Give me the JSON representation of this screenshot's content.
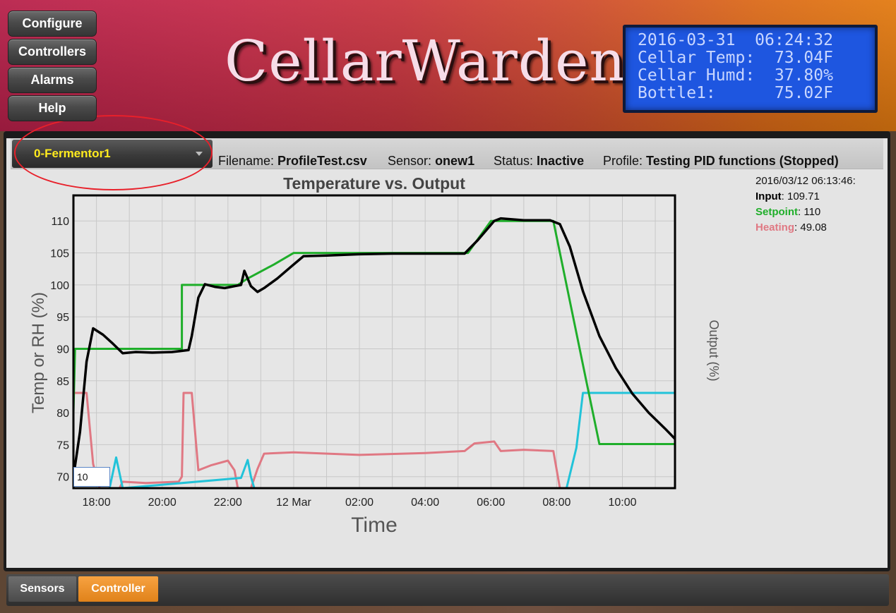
{
  "header": {
    "nav": [
      "Configure",
      "Controllers",
      "Alarms",
      "Help"
    ],
    "brand": "CellarWarden",
    "lcd": [
      "2016-03-31  06:24:32",
      "Cellar Temp:  73.04F",
      "Cellar Humd:  37.80%",
      "Bottle1:      75.02F"
    ]
  },
  "controller": {
    "selected": "0-Fermentor1"
  },
  "info": {
    "filename_label": "Filename:",
    "filename": "ProfileTest.csv",
    "sensor_label": "Sensor:",
    "sensor": "onew1",
    "status_label": "Status:",
    "status": "Inactive",
    "profile_label": "Profile:",
    "profile": "Testing PID functions (Stopped)"
  },
  "legend": {
    "timestamp": "2016/03/12 06:13:46:",
    "input_label": "Input",
    "input_value": ": 109.71",
    "setpoint_label": "Setpoint",
    "setpoint_value": ": 110",
    "heating_label": "Heating",
    "heating_value": ": 49.08"
  },
  "zoom_input_value": "10",
  "tabs": [
    "Sensors",
    "Controller"
  ],
  "colors": {
    "input": "#000000",
    "setpoint": "#1fae2a",
    "heating": "#e07883",
    "output_cyan": "#22c3d9",
    "tab_active": "#f0932e",
    "controller_text": "#ffeb1e",
    "lcd_bg": "#1e56e0"
  },
  "chart_data": {
    "type": "line",
    "title": "Temperature vs. Output",
    "xlabel": "Time",
    "ylabel": "Temp or RH (%)",
    "y2label": "Output (%)",
    "x_unit": "hours since 2016-03-11 17:30",
    "xlim": [
      17.3,
      35.6
    ],
    "ylim": [
      68.2,
      114
    ],
    "yticks": [
      70,
      75,
      80,
      85,
      90,
      95,
      100,
      105,
      110
    ],
    "xticks": [
      {
        "t": 18,
        "label": "18:00"
      },
      {
        "t": 20,
        "label": "20:00"
      },
      {
        "t": 22,
        "label": "22:00"
      },
      {
        "t": 24,
        "label": "12 Mar"
      },
      {
        "t": 26,
        "label": "02:00"
      },
      {
        "t": 28,
        "label": "04:00"
      },
      {
        "t": 30,
        "label": "06:00"
      },
      {
        "t": 32,
        "label": "08:00"
      },
      {
        "t": 34,
        "label": "10:00"
      }
    ],
    "series": [
      {
        "name": "Input",
        "color": "#000000",
        "points": [
          [
            17.3,
            70
          ],
          [
            17.5,
            77
          ],
          [
            17.7,
            88
          ],
          [
            17.9,
            93.2
          ],
          [
            18.2,
            92.2
          ],
          [
            18.5,
            90.8
          ],
          [
            18.8,
            89.3
          ],
          [
            19.2,
            89.5
          ],
          [
            19.7,
            89.4
          ],
          [
            20.3,
            89.5
          ],
          [
            20.8,
            89.8
          ],
          [
            20.9,
            92
          ],
          [
            21.1,
            98
          ],
          [
            21.3,
            100.1
          ],
          [
            21.6,
            99.7
          ],
          [
            21.9,
            99.5
          ],
          [
            22.2,
            99.8
          ],
          [
            22.4,
            100
          ],
          [
            22.5,
            102.2
          ],
          [
            22.7,
            99.8
          ],
          [
            22.9,
            98.9
          ],
          [
            23.1,
            99.5
          ],
          [
            23.5,
            101
          ],
          [
            24,
            103.2
          ],
          [
            24.3,
            104.5
          ],
          [
            25,
            104.6
          ],
          [
            26,
            104.8
          ],
          [
            27,
            104.9
          ],
          [
            28,
            104.9
          ],
          [
            29.2,
            104.9
          ],
          [
            29.6,
            107
          ],
          [
            30.1,
            110
          ],
          [
            30.3,
            110.4
          ],
          [
            31,
            110.1
          ],
          [
            31.8,
            110.1
          ],
          [
            32.1,
            109.5
          ],
          [
            32.4,
            106
          ],
          [
            32.8,
            99
          ],
          [
            33.3,
            92
          ],
          [
            33.8,
            87
          ],
          [
            34.3,
            83
          ],
          [
            34.8,
            80
          ],
          [
            35.3,
            77.5
          ],
          [
            35.6,
            75.9
          ]
        ]
      },
      {
        "name": "Setpoint",
        "color": "#1fae2a",
        "points": [
          [
            17.3,
            80
          ],
          [
            17.35,
            90
          ],
          [
            20.6,
            90
          ],
          [
            20.6,
            100
          ],
          [
            22.3,
            100
          ],
          [
            22.6,
            101
          ],
          [
            23.4,
            103.2
          ],
          [
            24,
            105
          ],
          [
            29.3,
            105
          ],
          [
            30,
            110
          ],
          [
            31.9,
            110
          ],
          [
            32.9,
            85
          ],
          [
            33.3,
            75.1
          ],
          [
            35.6,
            75.1
          ]
        ]
      },
      {
        "name": "Heating",
        "color": "#e07883",
        "points": [
          [
            17.3,
            83.1
          ],
          [
            17.7,
            83.1
          ],
          [
            17.9,
            72
          ],
          [
            18.1,
            68.2
          ],
          [
            18.7,
            68.2
          ],
          [
            18.8,
            69.2
          ],
          [
            19.5,
            69
          ],
          [
            20.5,
            69.2
          ],
          [
            20.6,
            70
          ],
          [
            20.65,
            83.1
          ],
          [
            20.9,
            83.1
          ],
          [
            21.1,
            71
          ],
          [
            21.5,
            71.8
          ],
          [
            22,
            72.5
          ],
          [
            22.2,
            71
          ],
          [
            22.3,
            68.2
          ],
          [
            22.7,
            68.2
          ],
          [
            22.9,
            71.2
          ],
          [
            23.1,
            73.6
          ],
          [
            24,
            73.8
          ],
          [
            26,
            73.4
          ],
          [
            28,
            73.7
          ],
          [
            29.2,
            74
          ],
          [
            29.5,
            75.2
          ],
          [
            30.1,
            75.5
          ],
          [
            30.3,
            74
          ],
          [
            31,
            74.2
          ],
          [
            31.9,
            74
          ],
          [
            32.1,
            68.2
          ]
        ]
      },
      {
        "name": "Output",
        "color": "#22c3d9",
        "points": [
          [
            18.4,
            68.2
          ],
          [
            18.6,
            73
          ],
          [
            18.8,
            68.2
          ],
          [
            22.4,
            69.8
          ],
          [
            22.6,
            72.6
          ],
          [
            22.7,
            70
          ],
          [
            22.8,
            68.2
          ],
          [
            32.3,
            68.2
          ],
          [
            32.6,
            74.5
          ],
          [
            32.8,
            83.1
          ],
          [
            35.6,
            83.1
          ]
        ]
      }
    ]
  }
}
